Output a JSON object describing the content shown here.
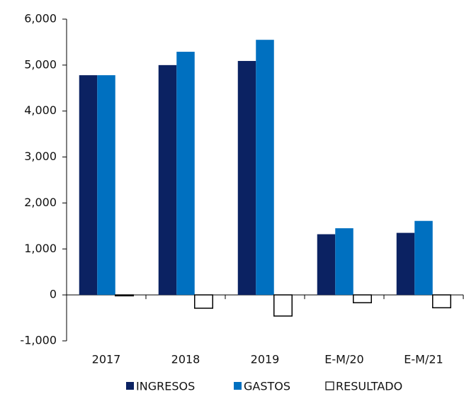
{
  "chart_data": {
    "type": "bar",
    "categories": [
      "2017",
      "2018",
      "2019",
      "E-M/20",
      "E-M/21"
    ],
    "series": [
      {
        "name": "INGRESOS",
        "color": "#0b2262",
        "values": [
          4780,
          5000,
          5090,
          1320,
          1350
        ]
      },
      {
        "name": "GASTOS",
        "color": "#0070c0",
        "values": [
          4780,
          5290,
          5550,
          1450,
          1610
        ]
      },
      {
        "name": "RESULTADO",
        "color": "#ffffff",
        "values": [
          -20,
          -290,
          -460,
          -170,
          -280
        ]
      }
    ],
    "ylim": [
      -1000,
      6000
    ],
    "yticks": [
      {
        "value": -1000,
        "label": "-1,000"
      },
      0,
      {
        "value": 1000,
        "label": "1,000"
      },
      {
        "value": 2000,
        "label": "2,000"
      },
      {
        "value": 3000,
        "label": "3,000"
      },
      {
        "value": 4000,
        "label": "4,000"
      },
      {
        "value": 5000,
        "label": "5,000"
      },
      {
        "value": 6000,
        "label": "6,000"
      }
    ],
    "grid": false,
    "legend": "bottom"
  }
}
